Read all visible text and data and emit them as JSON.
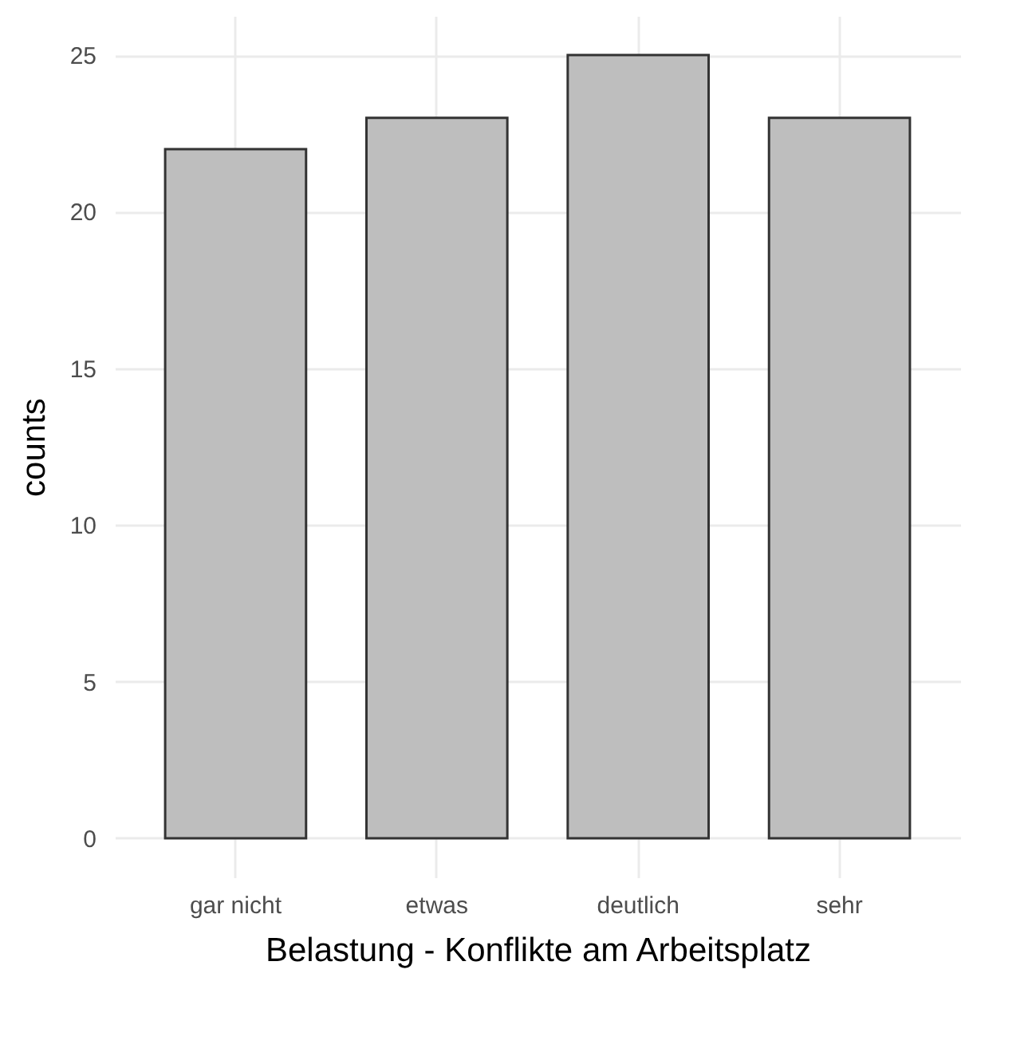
{
  "chart_data": {
    "type": "bar",
    "xlabel": "Belastung - Konflikte am Arbeitsplatz",
    "ylabel": "counts",
    "categories": [
      "gar nicht",
      "etwas",
      "deutlich",
      "sehr"
    ],
    "values": [
      22,
      23,
      25,
      23
    ],
    "color": "#bebebe",
    "ylim": [
      -1.25,
      26.25
    ],
    "yticks": [
      0,
      5,
      10,
      15,
      20,
      25
    ],
    "grid": true
  }
}
